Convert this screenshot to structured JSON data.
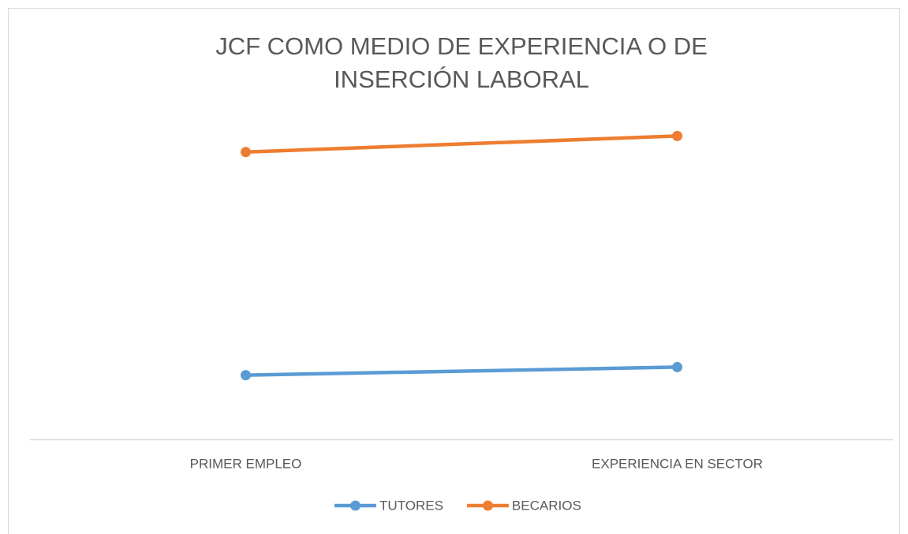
{
  "chart_data": {
    "type": "line",
    "title": "JCF COMO MEDIO DE EXPERIENCIA O DE INSERCIÓN LABORAL",
    "categories": [
      "PRIMER EMPLEO",
      "EXPERIENCIA EN SECTOR"
    ],
    "series": [
      {
        "name": "TUTORES",
        "color": "#5b9bd5",
        "values": [
          20,
          22.5
        ]
      },
      {
        "name": "BECARIOS",
        "color": "#ed7d31",
        "values": [
          89.5,
          94.5
        ]
      }
    ],
    "ylim": [
      0,
      100
    ],
    "legend": "bottom"
  }
}
